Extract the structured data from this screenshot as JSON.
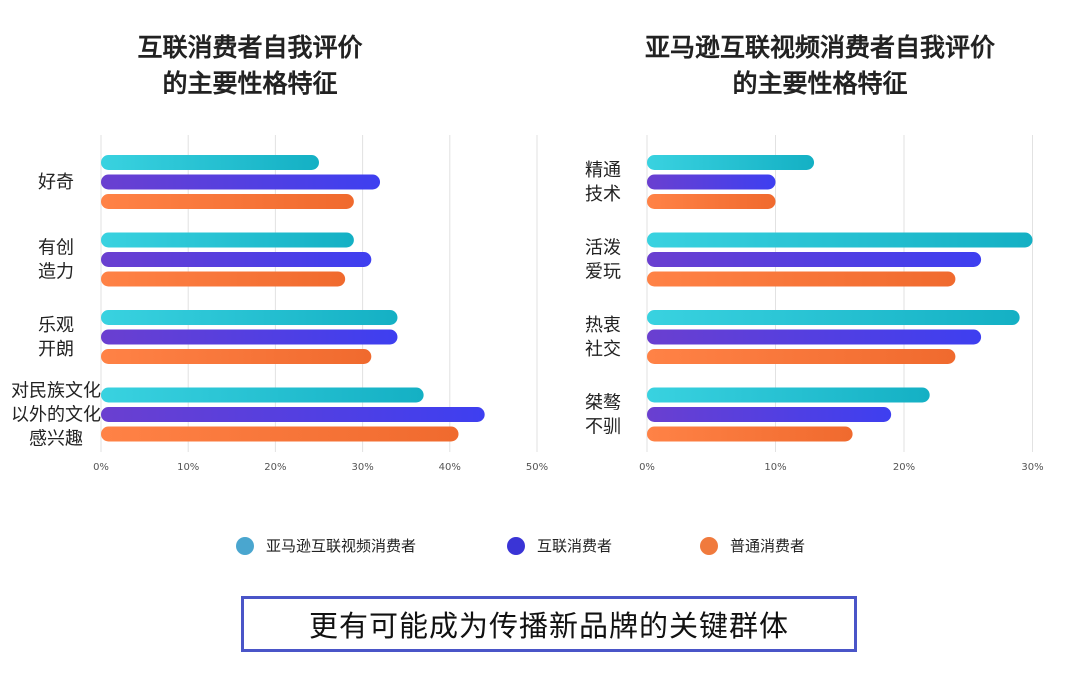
{
  "chart_data": [
    {
      "type": "bar",
      "orientation": "horizontal",
      "title": [
        "互联消费者自我评价",
        "的主要性格特征"
      ],
      "categories": [
        [
          "好奇"
        ],
        [
          "有创",
          "造力"
        ],
        [
          "乐观",
          "开朗"
        ],
        [
          "对民族文化",
          "以外的文化",
          "感兴趣"
        ]
      ],
      "series": [
        {
          "name": "亚马逊互联视频消费者",
          "values": [
            25,
            29,
            34,
            37
          ]
        },
        {
          "name": "互联消费者",
          "values": [
            32,
            31,
            34,
            44
          ]
        },
        {
          "name": "普通消费者",
          "values": [
            29,
            28,
            31,
            41
          ]
        }
      ],
      "xlim": [
        0,
        50
      ],
      "xticks": [
        "0%",
        "10%",
        "20%",
        "30%",
        "40%",
        "50%"
      ],
      "grid": true
    },
    {
      "type": "bar",
      "orientation": "horizontal",
      "title": [
        "亚马逊互联视频消费者自我评价",
        "的主要性格特征"
      ],
      "categories": [
        [
          "精通",
          "技术"
        ],
        [
          "活泼",
          "爱玩"
        ],
        [
          "热衷",
          "社交"
        ],
        [
          "桀骜",
          "不驯"
        ]
      ],
      "series": [
        {
          "name": "亚马逊互联视频消费者",
          "values": [
            13,
            30,
            29,
            22
          ]
        },
        {
          "name": "互联消费者",
          "values": [
            10,
            26,
            26,
            19
          ]
        },
        {
          "name": "普通消费者",
          "values": [
            10,
            24,
            24,
            16
          ]
        }
      ],
      "xlim": [
        0,
        30
      ],
      "xticks": [
        "0%",
        "10%",
        "20%",
        "30%"
      ],
      "grid": true
    }
  ],
  "legend": [
    {
      "label": "亚马逊互联视频消费者",
      "color": "#4aa6cf"
    },
    {
      "label": "互联消费者",
      "color": "#3a34d6"
    },
    {
      "label": "普通消费者",
      "color": "#f07a3d"
    }
  ],
  "series_colors": [
    [
      "#39d2e0",
      "#14b0c4"
    ],
    [
      "#6a3fd0",
      "#3e3ff0"
    ],
    [
      "#ff8246",
      "#f06a2e"
    ]
  ],
  "callout": "更有可能成为传播新品牌的关键群体"
}
